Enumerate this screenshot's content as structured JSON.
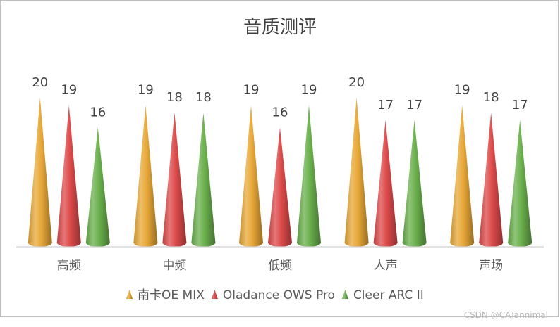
{
  "chart_data": {
    "type": "bar",
    "title": "音质测评",
    "categories": [
      "高频",
      "中频",
      "低频",
      "人声",
      "声场"
    ],
    "series": [
      {
        "name": "南卡OE MIX",
        "values": [
          20,
          19,
          19,
          20,
          19
        ],
        "color": "#E8A838"
      },
      {
        "name": "Oladance OWS Pro",
        "values": [
          19,
          18,
          16,
          17,
          18
        ],
        "color": "#DD4A4A"
      },
      {
        "name": "Cleer ARC II",
        "values": [
          16,
          18,
          19,
          17,
          17
        ],
        "color": "#6AB04C"
      }
    ],
    "ylim": [
      0,
      20
    ],
    "grid": false,
    "legend": "bottom",
    "mark_shape": "cone"
  },
  "watermark": "CSDN @CATannimal"
}
